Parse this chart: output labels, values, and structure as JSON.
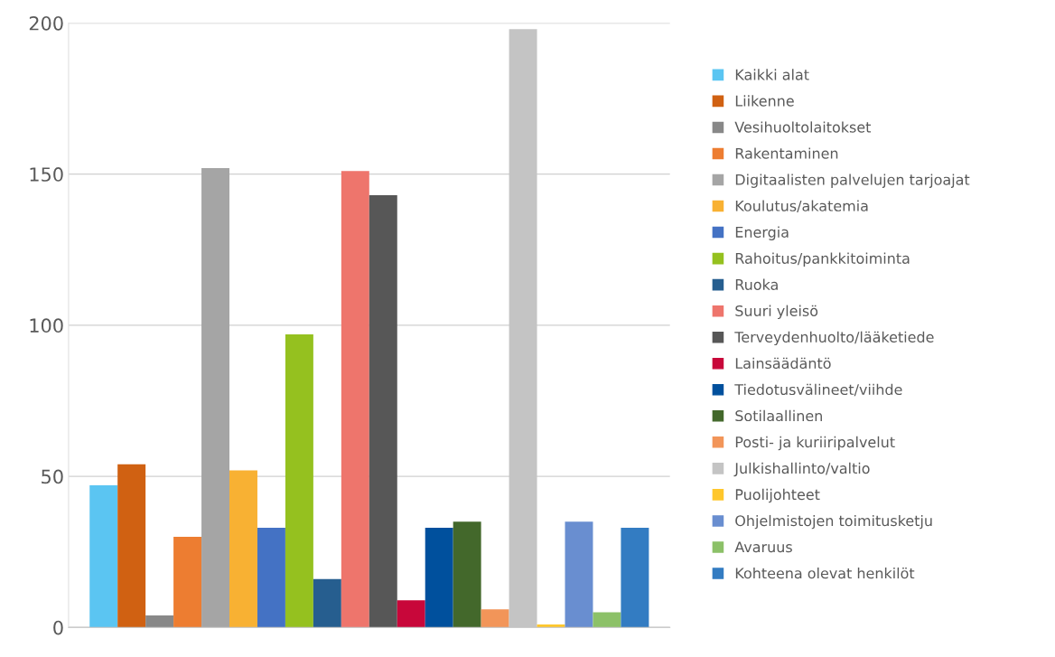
{
  "chart_data": {
    "type": "bar",
    "categories": [
      null
    ],
    "series": [
      {
        "name": "Kaikki alat",
        "color": "#5bc5f2",
        "values": [
          47
        ]
      },
      {
        "name": "Liikenne",
        "color": "#d06112",
        "values": [
          54
        ]
      },
      {
        "name": "Vesihuoltolaitokset",
        "color": "#888888",
        "values": [
          4
        ]
      },
      {
        "name": "Rakentaminen",
        "color": "#ed7d31",
        "values": [
          30
        ]
      },
      {
        "name": "Digitaalisten palvelujen tarjoajat",
        "color": "#a5a5a5",
        "values": [
          152
        ]
      },
      {
        "name": "Koulutus/akatemia",
        "color": "#f8b133",
        "values": [
          52
        ]
      },
      {
        "name": "Energia",
        "color": "#4472c4",
        "values": [
          33
        ]
      },
      {
        "name": "Rahoitus/pankkitoiminta",
        "color": "#95c11f",
        "values": [
          97
        ]
      },
      {
        "name": "Ruoka",
        "color": "#265e8f",
        "values": [
          16
        ]
      },
      {
        "name": "Suuri yleisö",
        "color": "#ee756c",
        "values": [
          151
        ]
      },
      {
        "name": "Terveydenhuolto/lääketiede",
        "color": "#575757",
        "values": [
          143
        ]
      },
      {
        "name": "Lainsäädäntö",
        "color": "#c8073a",
        "values": [
          9
        ]
      },
      {
        "name": "Tiedotusvälineet/viihde",
        "color": "#00509d",
        "values": [
          33
        ]
      },
      {
        "name": "Sotilaallinen",
        "color": "#43682b",
        "values": [
          35
        ]
      },
      {
        "name": "Posti- ja kuriiripalvelut",
        "color": "#f29559",
        "values": [
          6
        ]
      },
      {
        "name": "Julkishallinto/valtio",
        "color": "#c4c4c4",
        "values": [
          198
        ]
      },
      {
        "name": "Puolijohteet",
        "color": "#ffc72c",
        "values": [
          1
        ]
      },
      {
        "name": "Ohjelmistojen toimitusketju",
        "color": "#698ed0",
        "values": [
          35
        ]
      },
      {
        "name": "Avaruus",
        "color": "#8cc168",
        "values": [
          5
        ]
      },
      {
        "name": "Kohteena olevat henkilöt",
        "color": "#337cc2",
        "values": [
          33
        ]
      }
    ],
    "ylim": [
      0,
      200
    ],
    "yticks": [
      0,
      50,
      100,
      150,
      200
    ],
    "grid": "y",
    "legend": "right"
  }
}
